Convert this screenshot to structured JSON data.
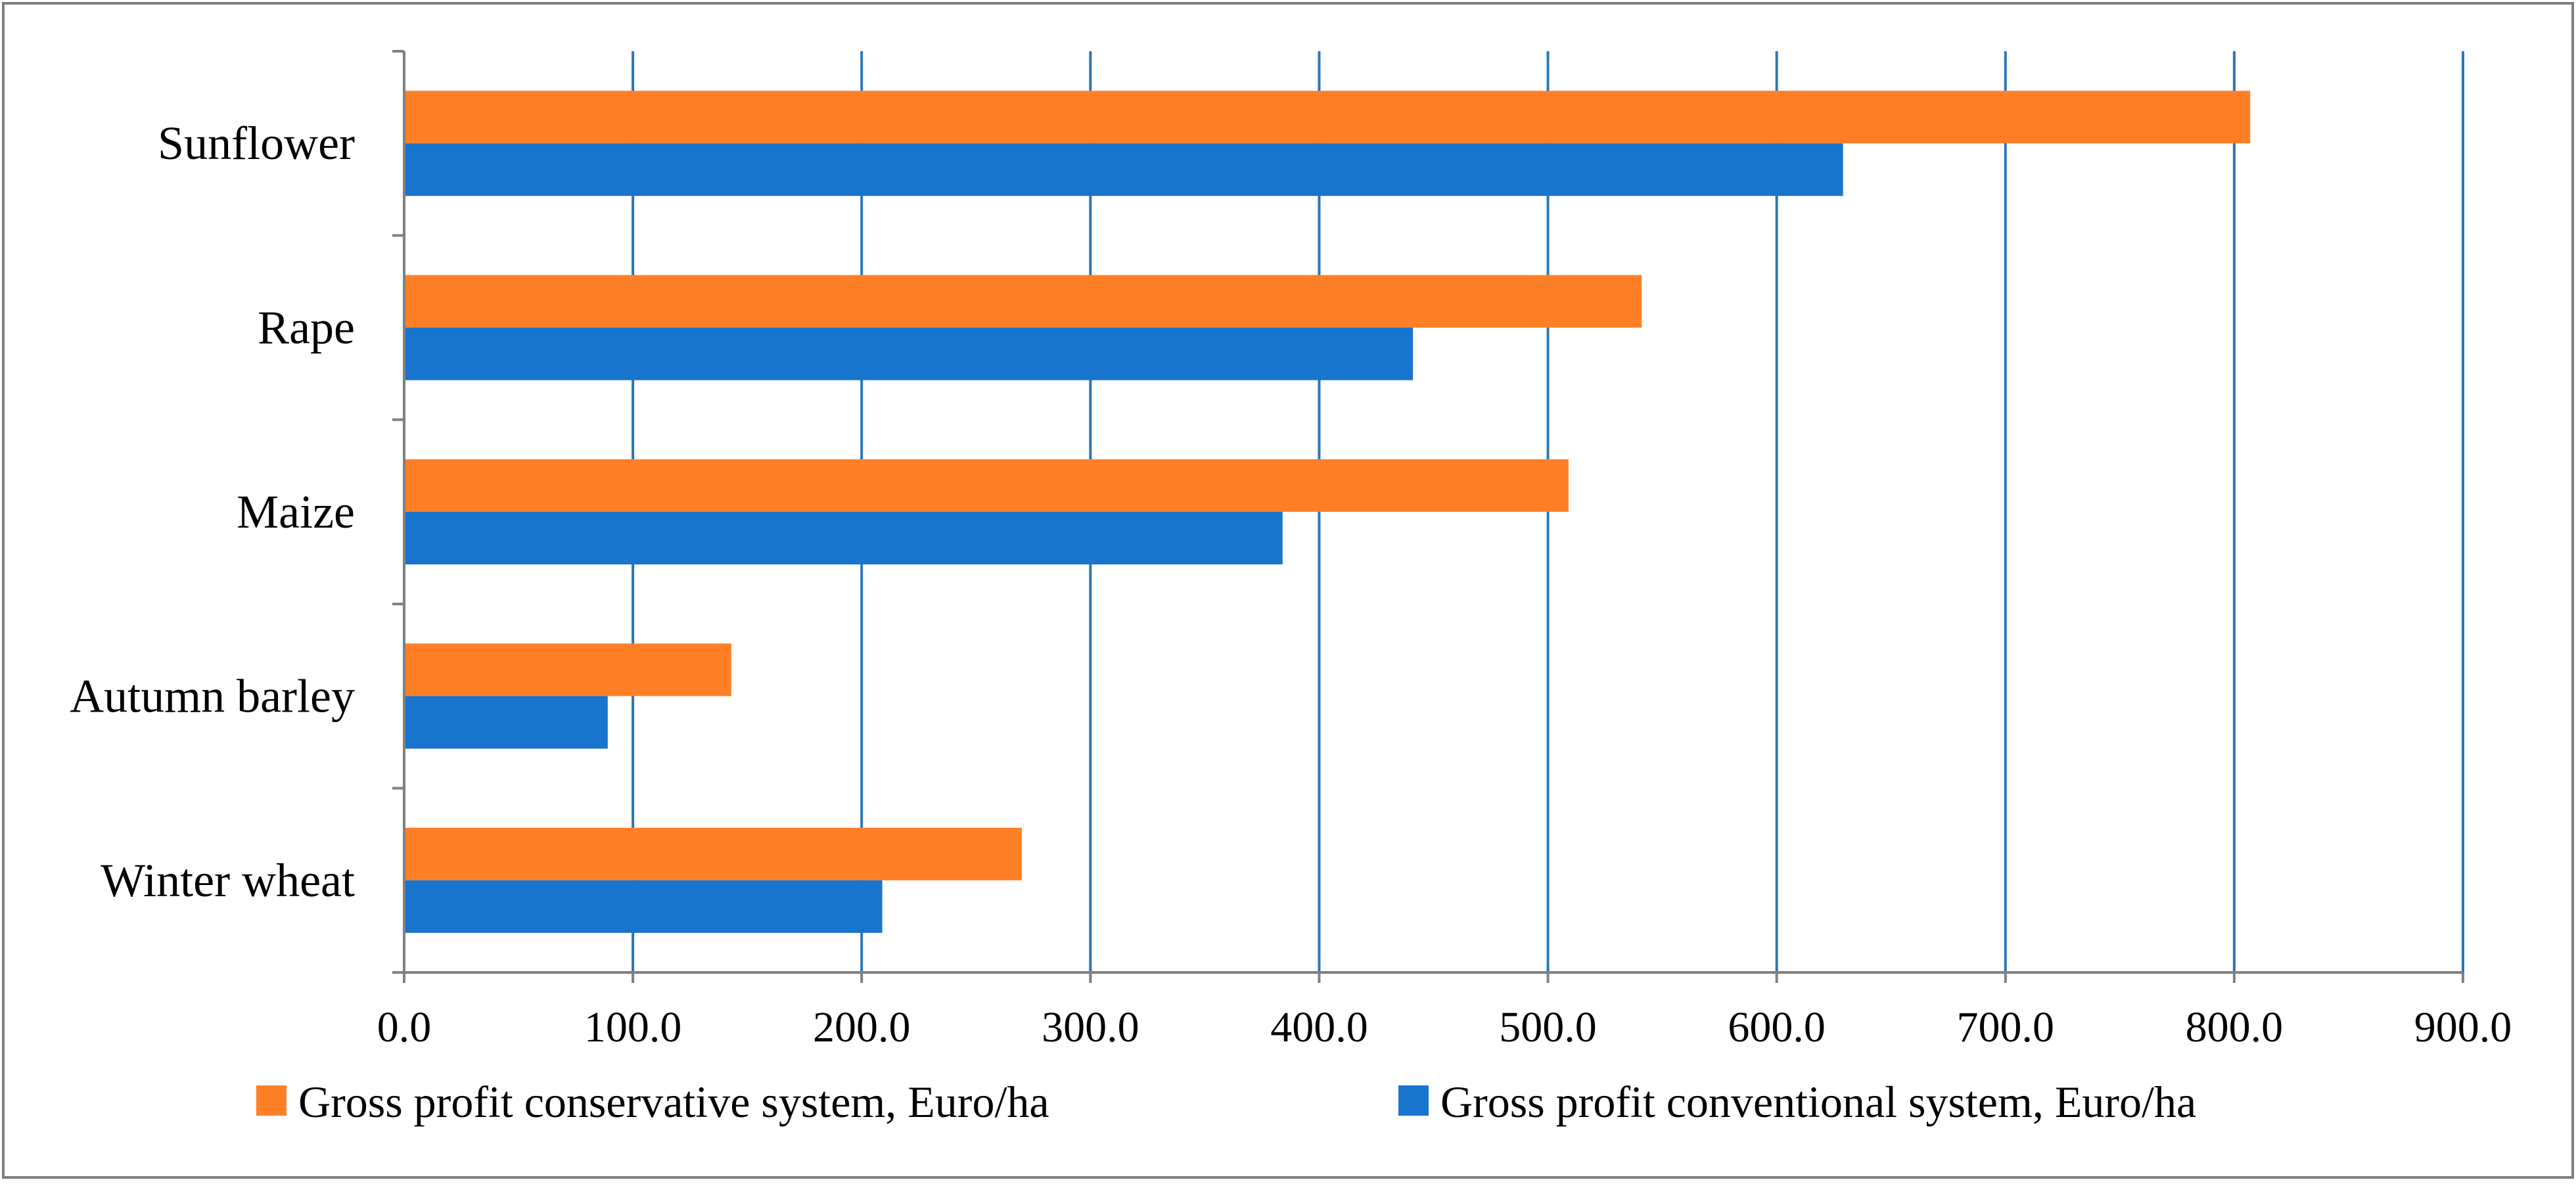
{
  "chart_data": {
    "type": "bar",
    "orientation": "horizontal",
    "title": "",
    "xlabel": "",
    "ylabel": "",
    "categories": [
      "Sunflower",
      "Rape",
      "Maize",
      "Autumn barley",
      "Winter wheat"
    ],
    "series": [
      {
        "name": "Gross profit conservative system, Euro/ha",
        "color": "#FF7F27",
        "values": [
          807,
          541,
          509,
          143,
          270
        ]
      },
      {
        "name": "Gross profit conventional system, Euro/ha",
        "color": "#1874CD",
        "values": [
          629,
          441,
          384,
          89,
          209
        ]
      }
    ],
    "xlim": [
      0,
      900
    ],
    "x_ticks": [
      "0.0",
      "100.0",
      "200.0",
      "300.0",
      "400.0",
      "500.0",
      "600.0",
      "700.0",
      "800.0",
      "900.0"
    ],
    "grid": "vertical",
    "legend": "bottom"
  },
  "colors": {
    "gridline": "#2E75B6",
    "axis": "#808080",
    "border": "#808080"
  }
}
